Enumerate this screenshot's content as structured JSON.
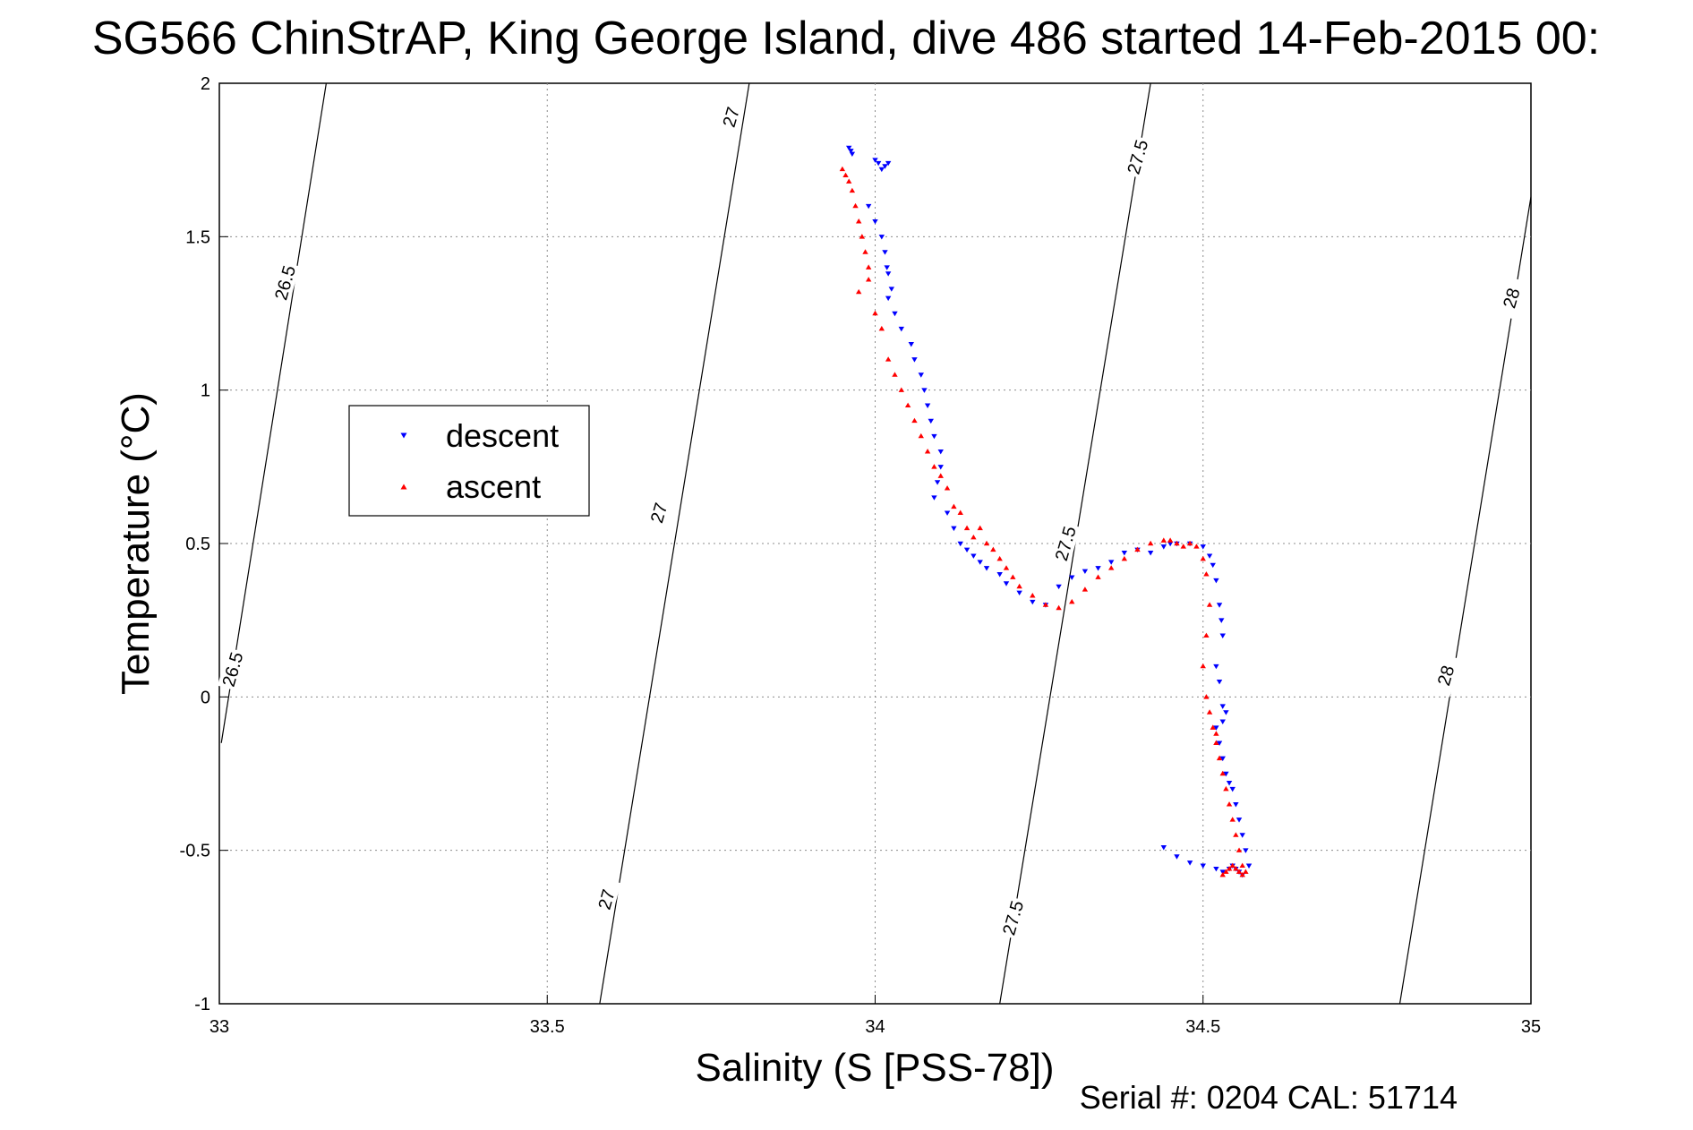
{
  "chart_data": {
    "type": "scatter",
    "title": "SG566 ChinStrAP, King George Island, dive 486 started 14-Feb-2015 00:",
    "xlabel": "Salinity (S [PSS-78])",
    "ylabel": "Temperature (°C)",
    "xlim": [
      33,
      35
    ],
    "ylim": [
      -1,
      2
    ],
    "xticks": [
      "33",
      "33.5",
      "34",
      "34.5",
      "35"
    ],
    "yticks": [
      "-1",
      "-0.5",
      "0",
      "0.5",
      "1",
      "1.5",
      "2"
    ],
    "grid": true,
    "legend_position": "left-middle",
    "footer": "Serial #: 0204  CAL: 51714",
    "isopycnals": [
      {
        "label": "26.5",
        "x": [
          33.003,
          33.163
        ],
        "y": [
          -0.15,
          2.0
        ]
      },
      {
        "label": "27",
        "x": [
          33.58,
          33.808
        ],
        "y": [
          -1.0,
          2.0
        ]
      },
      {
        "label": "27.5",
        "x": [
          34.19,
          34.42
        ],
        "y": [
          -1.0,
          2.0
        ]
      },
      {
        "label": "28",
        "x": [
          34.8,
          35.0
        ],
        "y": [
          -1.0,
          1.63
        ]
      }
    ],
    "iso_text": [
      {
        "text": "26.5",
        "x": 33.1,
        "y": 1.35
      },
      {
        "text": "26.5",
        "x": 33.02,
        "y": 0.09
      },
      {
        "text": "27",
        "x": 33.78,
        "y": 1.89
      },
      {
        "text": "27",
        "x": 33.67,
        "y": 0.6
      },
      {
        "text": "27",
        "x": 33.59,
        "y": -0.66
      },
      {
        "text": "27.5",
        "x": 34.4,
        "y": 1.76
      },
      {
        "text": "27.5",
        "x": 34.29,
        "y": 0.5
      },
      {
        "text": "27.5",
        "x": 34.21,
        "y": -0.72
      },
      {
        "text": "28",
        "x": 34.97,
        "y": 1.3
      },
      {
        "text": "28",
        "x": 34.87,
        "y": 0.07
      }
    ],
    "series": [
      {
        "name": "descent",
        "color": "#0000ff",
        "marker": "triangle-down",
        "x": [
          33.96,
          33.963,
          33.965,
          34.0,
          34.005,
          34.01,
          34.015,
          34.02,
          33.99,
          34.0,
          34.01,
          34.015,
          34.018,
          34.02,
          34.025,
          34.02,
          34.03,
          34.04,
          34.055,
          34.06,
          34.07,
          34.075,
          34.08,
          34.085,
          34.09,
          34.1,
          34.1,
          34.095,
          34.09,
          34.11,
          34.12,
          34.13,
          34.14,
          34.15,
          34.16,
          34.17,
          34.19,
          34.2,
          34.22,
          34.24,
          34.26,
          34.28,
          34.3,
          34.32,
          34.34,
          34.36,
          34.38,
          34.4,
          34.42,
          34.44,
          34.45,
          34.46,
          34.48,
          34.5,
          34.51,
          34.515,
          34.52,
          34.525,
          34.528,
          34.53,
          34.52,
          34.525,
          34.53,
          34.535,
          34.53,
          34.52,
          34.525,
          34.53,
          34.535,
          34.54,
          34.545,
          34.55,
          34.555,
          34.56,
          34.565,
          34.57,
          34.56,
          34.555,
          34.55,
          34.545,
          34.54,
          34.53,
          34.52,
          34.5,
          34.48,
          34.46,
          34.44
        ],
        "y": [
          1.79,
          1.78,
          1.77,
          1.75,
          1.74,
          1.72,
          1.73,
          1.74,
          1.6,
          1.55,
          1.5,
          1.45,
          1.4,
          1.38,
          1.33,
          1.3,
          1.25,
          1.2,
          1.15,
          1.1,
          1.05,
          1.0,
          0.95,
          0.9,
          0.85,
          0.8,
          0.75,
          0.7,
          0.65,
          0.6,
          0.55,
          0.5,
          0.48,
          0.46,
          0.44,
          0.42,
          0.4,
          0.37,
          0.34,
          0.31,
          0.3,
          0.36,
          0.39,
          0.41,
          0.42,
          0.44,
          0.47,
          0.48,
          0.47,
          0.49,
          0.5,
          0.5,
          0.5,
          0.49,
          0.46,
          0.43,
          0.38,
          0.3,
          0.25,
          0.2,
          0.1,
          0.05,
          -0.03,
          -0.05,
          -0.08,
          -0.1,
          -0.15,
          -0.2,
          -0.25,
          -0.28,
          -0.3,
          -0.35,
          -0.4,
          -0.45,
          -0.5,
          -0.55,
          -0.58,
          -0.57,
          -0.56,
          -0.55,
          -0.56,
          -0.57,
          -0.56,
          -0.55,
          -0.54,
          -0.52,
          -0.49
        ]
      },
      {
        "name": "ascent",
        "color": "#ff0000",
        "marker": "triangle-up",
        "x": [
          33.95,
          33.955,
          33.96,
          33.965,
          33.97,
          33.975,
          33.98,
          33.985,
          33.99,
          33.975,
          33.99,
          34.0,
          34.01,
          34.02,
          34.03,
          34.04,
          34.05,
          34.06,
          34.07,
          34.08,
          34.09,
          34.1,
          34.11,
          34.12,
          34.13,
          34.14,
          34.15,
          34.16,
          34.17,
          34.18,
          34.19,
          34.2,
          34.21,
          34.22,
          34.24,
          34.26,
          34.28,
          34.3,
          34.32,
          34.34,
          34.36,
          34.38,
          34.4,
          34.42,
          34.44,
          34.45,
          34.46,
          34.47,
          34.48,
          34.49,
          34.5,
          34.505,
          34.51,
          34.505,
          34.5,
          34.505,
          34.51,
          34.515,
          34.52,
          34.52,
          34.525,
          34.53,
          34.535,
          34.54,
          34.545,
          34.55,
          34.555,
          34.56,
          34.565,
          34.56,
          34.555,
          34.55,
          34.545,
          34.54,
          34.535,
          34.53
        ],
        "y": [
          1.72,
          1.7,
          1.68,
          1.65,
          1.6,
          1.55,
          1.5,
          1.45,
          1.4,
          1.32,
          1.36,
          1.25,
          1.2,
          1.1,
          1.05,
          1.0,
          0.95,
          0.9,
          0.85,
          0.8,
          0.75,
          0.72,
          0.68,
          0.62,
          0.6,
          0.55,
          0.52,
          0.55,
          0.5,
          0.48,
          0.45,
          0.42,
          0.39,
          0.36,
          0.33,
          0.3,
          0.29,
          0.31,
          0.35,
          0.39,
          0.42,
          0.45,
          0.48,
          0.5,
          0.51,
          0.51,
          0.5,
          0.49,
          0.5,
          0.49,
          0.45,
          0.4,
          0.3,
          0.2,
          0.1,
          0.0,
          -0.05,
          -0.1,
          -0.12,
          -0.15,
          -0.2,
          -0.25,
          -0.3,
          -0.35,
          -0.4,
          -0.45,
          -0.5,
          -0.55,
          -0.57,
          -0.58,
          -0.57,
          -0.56,
          -0.55,
          -0.56,
          -0.57,
          -0.58
        ]
      }
    ]
  }
}
